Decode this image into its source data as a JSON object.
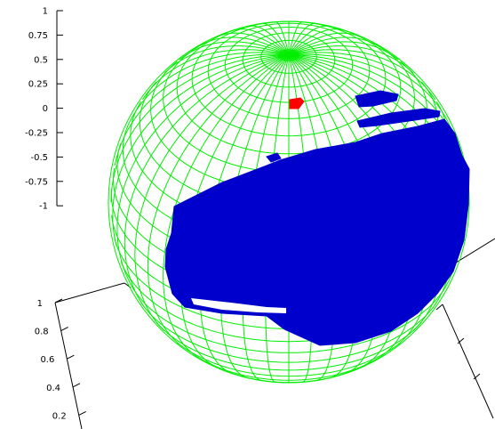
{
  "chart_data": {
    "type": "scatter",
    "title": "",
    "z_axis": {
      "ticks": [
        1,
        0.75,
        0.5,
        0.25,
        0,
        -0.25,
        -0.5,
        -0.75,
        -1
      ],
      "tick_labels": [
        "1",
        "0.75",
        "0.5",
        "0.25",
        "0",
        "-0.25",
        "-0.5",
        "-0.75",
        "-1"
      ],
      "range": [
        -1,
        1
      ]
    },
    "y_axis": {
      "ticks": [
        1,
        0.8,
        0.6,
        0.4,
        0.2
      ],
      "tick_labels": [
        "1",
        "0.8",
        "0.6",
        "0.4",
        "0.2"
      ]
    },
    "grid": false,
    "legend": "none",
    "series": [
      {
        "style": "wireframe",
        "color": "#00ee00",
        "shape": "unit sphere"
      },
      {
        "style": "points",
        "color": "#0000cc",
        "region": "surface patch on sphere"
      },
      {
        "style": "points",
        "color": "#ff0000",
        "region": "small patch at pole"
      }
    ]
  },
  "colors": {
    "wire": "#00ee00",
    "points": "#0000cc",
    "highlight": "#ff0000",
    "axes": "#000000"
  }
}
